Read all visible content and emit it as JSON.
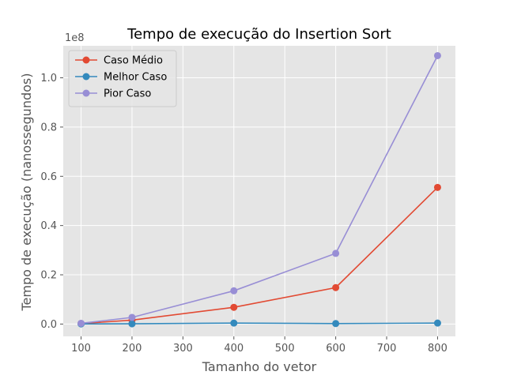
{
  "chart_data": {
    "type": "line",
    "title": "Tempo de execução do Insertion Sort",
    "xlabel": "Tamanho do vetor",
    "ylabel": "Tempo de execução (nanossegundos)",
    "y_offset_label": "1e8",
    "x": [
      100,
      200,
      400,
      600,
      800
    ],
    "xlim": [
      65,
      835
    ],
    "ylim": [
      -0.05,
      1.13
    ],
    "y_unit_multiplier": 100000000,
    "x_ticks": [
      100,
      200,
      300,
      400,
      500,
      600,
      700,
      800
    ],
    "x_tick_labels": [
      "100",
      "200",
      "300",
      "400",
      "500",
      "600",
      "700",
      "800"
    ],
    "y_ticks": [
      0.0,
      0.2,
      0.4,
      0.6,
      0.8,
      1.0
    ],
    "y_tick_labels": [
      "0.0",
      "0.2",
      "0.4",
      "0.6",
      "0.8",
      "1.0"
    ],
    "grid": true,
    "legend_position": "top-left",
    "background": "#e5e5e5",
    "series": [
      {
        "name": "Caso Médio",
        "color": "#e24a33",
        "values": [
          0.002,
          0.016,
          0.068,
          0.148,
          0.555
        ]
      },
      {
        "name": "Melhor Caso",
        "color": "#348abd",
        "values": [
          0.0005,
          0.001,
          0.004,
          0.002,
          0.004
        ]
      },
      {
        "name": "Pior Caso",
        "color": "#988ed5",
        "values": [
          0.003,
          0.027,
          0.135,
          0.287,
          1.09
        ]
      }
    ]
  }
}
